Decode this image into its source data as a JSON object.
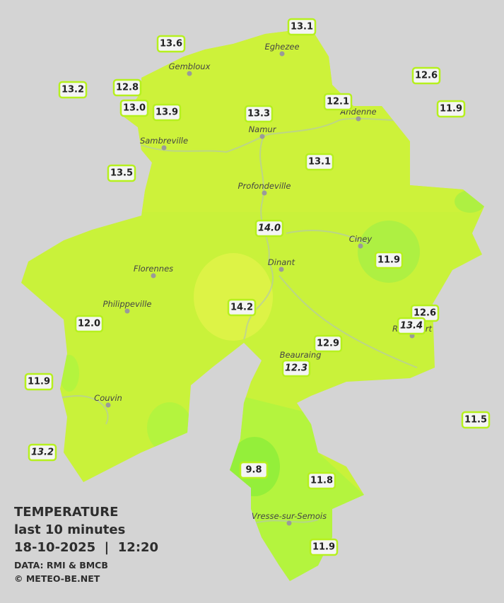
{
  "title": "TEMPERATURE",
  "subtitle": "last 10 minutes",
  "timestamp": "18-10-2025  |  12:20",
  "data_source": "DATA: RMI & BMCB",
  "copyright": "© METEO-BE.NET",
  "cities": [
    "Eghezee",
    "Gembloux",
    "Andenne",
    "Namur",
    "Sambreville",
    "Profondeville",
    "Ciney",
    "Dinant",
    "Florennes",
    "Philippeville",
    "Beauraing",
    "Rochefort",
    "Couvin",
    "Vresse-sur-Semois"
  ],
  "stations": [
    {
      "label": "13.1",
      "italic": false
    },
    {
      "label": "13.6",
      "italic": false
    },
    {
      "label": "12.6",
      "italic": false
    },
    {
      "label": "13.2",
      "italic": false
    },
    {
      "label": "12.8",
      "italic": false
    },
    {
      "label": "12.1",
      "italic": false
    },
    {
      "label": "11.9",
      "italic": false
    },
    {
      "label": "13.0",
      "italic": false
    },
    {
      "label": "13.9",
      "italic": false
    },
    {
      "label": "13.3",
      "italic": false
    },
    {
      "label": "13.1",
      "italic": false
    },
    {
      "label": "13.5",
      "italic": false
    },
    {
      "label": "14.0",
      "italic": true
    },
    {
      "label": "11.9",
      "italic": false
    },
    {
      "label": "14.2",
      "italic": false
    },
    {
      "label": "12.6",
      "italic": false
    },
    {
      "label": "12.0",
      "italic": false
    },
    {
      "label": "13.4",
      "italic": true
    },
    {
      "label": "12.9",
      "italic": false
    },
    {
      "label": "12.3",
      "italic": true
    },
    {
      "label": "11.9",
      "italic": false
    },
    {
      "label": "11.5",
      "italic": false
    },
    {
      "label": "13.2",
      "italic": true
    },
    {
      "label": "9.8",
      "italic": false
    },
    {
      "label": "11.8",
      "italic": false
    },
    {
      "label": "11.9",
      "italic": false
    }
  ]
}
